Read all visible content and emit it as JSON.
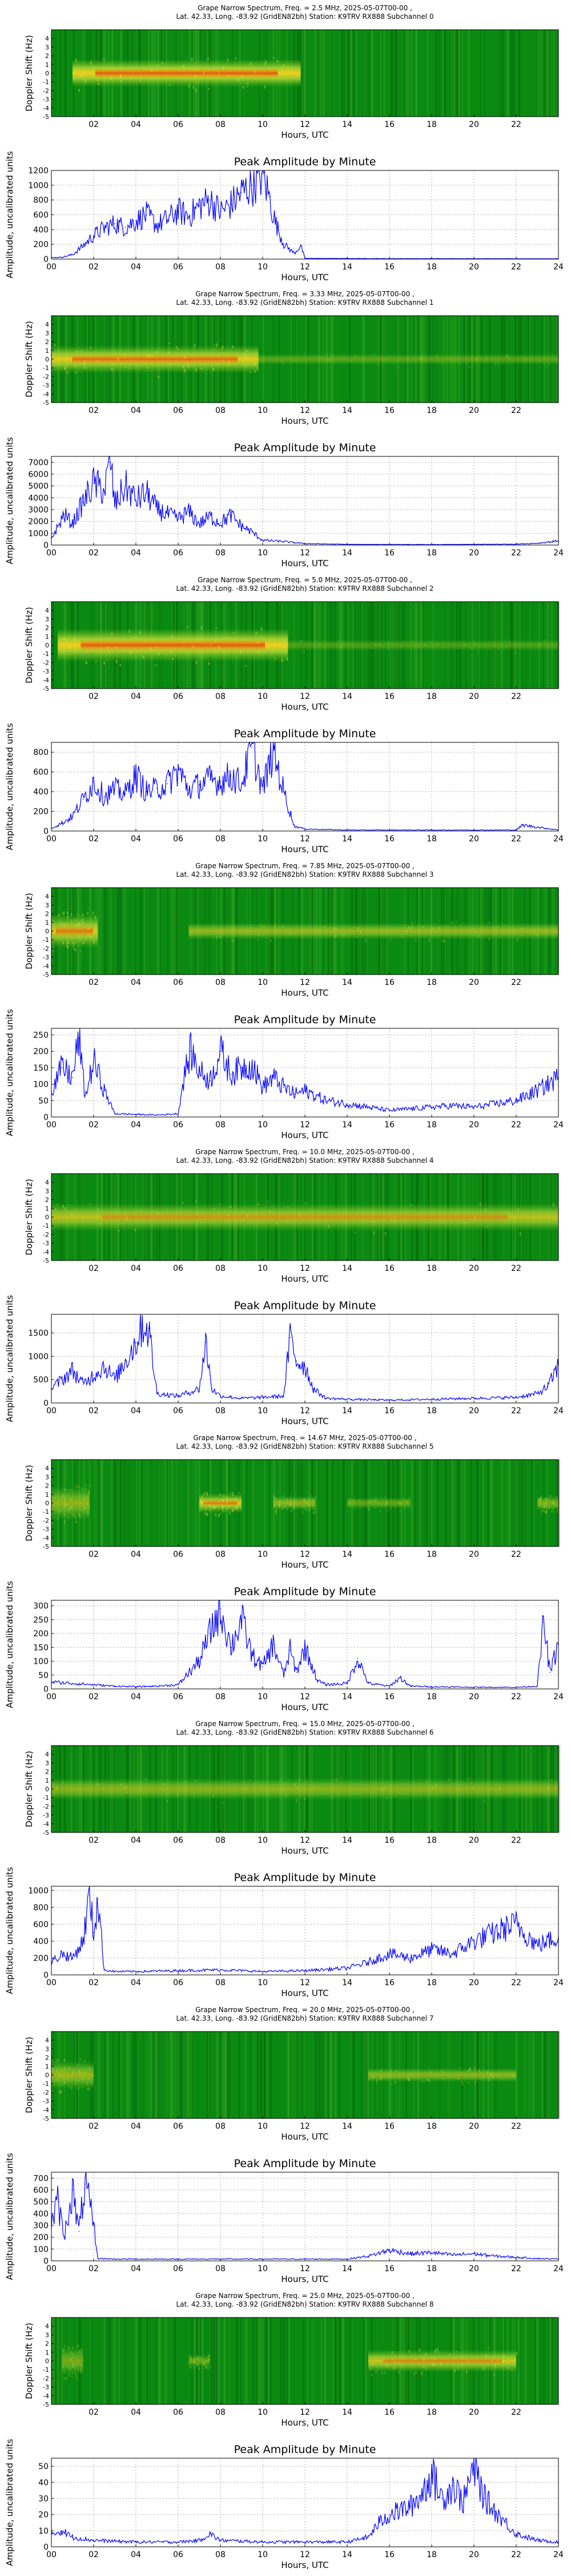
{
  "spectrogram_axes": {
    "ylabel": "Doppler Shift (Hz)",
    "xlabel": "Hours, UTC",
    "xticks": [
      "02",
      "04",
      "06",
      "08",
      "10",
      "12",
      "14",
      "16",
      "18",
      "20",
      "22"
    ],
    "yticks": [
      "-5",
      "-4",
      "-3",
      "-2",
      "-1",
      "0",
      "1",
      "2",
      "3",
      "4"
    ]
  },
  "amplitude_axes": {
    "title": "Peak Amplitude by Minute",
    "ylabel": "Amplitude, uncalibrated units",
    "xlabel": "Hours, UTC",
    "xticks": [
      "00",
      "02",
      "04",
      "06",
      "08",
      "10",
      "12",
      "14",
      "16",
      "18",
      "20",
      "22",
      "24"
    ]
  },
  "colors": {
    "spectrogram_bg": "#0b8a12",
    "trace": "#0000ff",
    "grid": "#b0b0b0"
  },
  "chart_data": [
    {
      "type": "heatmap",
      "title": "Grape Narrow Spectrum, Freq. = 2.5 MHz, 2025-05-07T00-00 , Lat.  42.33, Long. -83.92 (GridEN82bh) Station: K9TRV RX888 Subchannel 0",
      "title_line1": "Grape Narrow Spectrum, Freq. = 2.5 MHz, 2025-05-07T00-00 ,",
      "title_line2": "Lat.  42.33, Long. -83.92 (GridEN82bh) Station: K9TRV RX888 Subchannel 0",
      "xlabel": "Hours, UTC",
      "ylabel": "Doppler Shift (Hz)",
      "xlim": [
        0,
        24
      ],
      "ylim": [
        -5,
        5
      ],
      "signal": [
        {
          "start": 1.0,
          "end": 11.8,
          "level": 0.95,
          "width": 1.0
        }
      ]
    },
    {
      "type": "line",
      "title": "Peak Amplitude by Minute",
      "xlabel": "Hours, UTC",
      "ylabel": "Amplitude, uncalibrated units",
      "xlim": [
        0,
        24
      ],
      "ylim": [
        0,
        1200
      ],
      "yticks": [
        0,
        200,
        400,
        600,
        800,
        1000,
        1200
      ],
      "x": [
        0,
        0.5,
        1,
        1.5,
        2,
        2.5,
        3,
        3.5,
        4,
        4.5,
        5,
        5.5,
        6,
        6.5,
        7,
        7.5,
        8,
        8.5,
        9,
        9.5,
        10,
        10.3,
        10.6,
        11,
        11.5,
        11.8,
        12,
        14,
        16,
        18,
        20,
        22,
        24
      ],
      "y": [
        20,
        25,
        60,
        180,
        320,
        420,
        480,
        430,
        520,
        600,
        460,
        540,
        650,
        580,
        720,
        800,
        640,
        740,
        900,
        1000,
        1150,
        850,
        500,
        200,
        80,
        180,
        10,
        8,
        6,
        6,
        6,
        5,
        5
      ]
    },
    {
      "type": "heatmap",
      "title": "Grape Narrow Spectrum, Freq. = 3.33 MHz, 2025-05-07T00-00 , Lat.  42.33, Long. -83.92 (GridEN82bh) Station: K9TRV RX888 Subchannel 1",
      "title_line1": "Grape Narrow Spectrum, Freq. = 3.33 MHz, 2025-05-07T00-00 ,",
      "title_line2": "Lat.  42.33, Long. -83.92 (GridEN82bh) Station: K9TRV RX888 Subchannel 1",
      "xlabel": "Hours, UTC",
      "ylabel": "Doppler Shift (Hz)",
      "xlim": [
        0,
        24
      ],
      "ylim": [
        -5,
        5
      ],
      "signal": [
        {
          "start": 0.0,
          "end": 9.8,
          "level": 0.9,
          "width": 1.0
        },
        {
          "start": 9.8,
          "end": 24.0,
          "level": 0.35,
          "width": 0.4
        }
      ]
    },
    {
      "type": "line",
      "title": "Peak Amplitude by Minute",
      "xlabel": "Hours, UTC",
      "ylabel": "Amplitude, uncalibrated units",
      "xlim": [
        0,
        24
      ],
      "ylim": [
        0,
        7500
      ],
      "yticks": [
        0,
        1000,
        2000,
        3000,
        4000,
        5000,
        6000,
        7000
      ],
      "x": [
        0,
        0.3,
        0.6,
        1,
        1.5,
        2,
        2.5,
        2.8,
        3,
        3.5,
        4,
        4.5,
        5,
        5.5,
        6,
        6.5,
        7,
        7.5,
        8,
        8.5,
        9,
        9.5,
        10,
        11,
        12,
        14,
        16,
        18,
        20,
        22,
        23,
        24
      ],
      "y": [
        600,
        1500,
        2600,
        1800,
        3600,
        5200,
        4600,
        7000,
        3400,
        5000,
        3800,
        4400,
        3000,
        2600,
        2200,
        2800,
        1800,
        2400,
        1900,
        2500,
        1600,
        1100,
        400,
        300,
        120,
        60,
        50,
        40,
        60,
        80,
        150,
        350
      ]
    },
    {
      "type": "heatmap",
      "title": "Grape Narrow Spectrum, Freq. = 5.0 MHz, 2025-05-07T00-00 , Lat.  42.33, Long. -83.92 (GridEN82bh) Station: K9TRV RX888 Subchannel 2",
      "title_line1": "Grape Narrow Spectrum, Freq. = 5.0 MHz, 2025-05-07T00-00 ,",
      "title_line2": "Lat.  42.33, Long. -83.92 (GridEN82bh) Station: K9TRV RX888 Subchannel 2",
      "xlabel": "Hours, UTC",
      "ylabel": "Doppler Shift (Hz)",
      "xlim": [
        0,
        24
      ],
      "ylim": [
        -5,
        5
      ],
      "signal": [
        {
          "start": 0.3,
          "end": 11.2,
          "level": 0.95,
          "width": 1.2
        },
        {
          "start": 11.2,
          "end": 24.0,
          "level": 0.3,
          "width": 0.4
        }
      ]
    },
    {
      "type": "line",
      "title": "Peak Amplitude by Minute",
      "xlabel": "Hours, UTC",
      "ylabel": "Amplitude, uncalibrated units",
      "xlim": [
        0,
        24
      ],
      "ylim": [
        0,
        900
      ],
      "yticks": [
        0,
        200,
        400,
        600,
        800
      ],
      "x": [
        0,
        0.5,
        1,
        1.5,
        2,
        2.5,
        3,
        3.5,
        4,
        4.5,
        5,
        5.5,
        6,
        6.5,
        7,
        7.5,
        8,
        8.5,
        9,
        9.5,
        10,
        10.5,
        11,
        11.5,
        12,
        14,
        16,
        18,
        20,
        22,
        22.3,
        24
      ],
      "y": [
        30,
        80,
        150,
        320,
        500,
        350,
        420,
        380,
        560,
        400,
        430,
        480,
        620,
        420,
        470,
        520,
        500,
        560,
        480,
        850,
        420,
        820,
        400,
        50,
        20,
        10,
        10,
        10,
        10,
        10,
        60,
        10
      ]
    },
    {
      "type": "heatmap",
      "title": "Grape Narrow Spectrum, Freq. = 7.85 MHz, 2025-05-07T00-00 , Lat.  42.33, Long. -83.92 (GridEN82bh) Station: K9TRV RX888 Subchannel 3",
      "title_line1": "Grape Narrow Spectrum, Freq. = 7.85 MHz, 2025-05-07T00-00 ,",
      "title_line2": "Lat.  42.33, Long. -83.92 (GridEN82bh) Station: K9TRV RX888 Subchannel 3",
      "xlabel": "Hours, UTC",
      "ylabel": "Doppler Shift (Hz)",
      "xlim": [
        0,
        24
      ],
      "ylim": [
        -5,
        5
      ],
      "signal": [
        {
          "start": 0.0,
          "end": 2.2,
          "level": 0.85,
          "width": 1.2
        },
        {
          "start": 6.5,
          "end": 24.0,
          "level": 0.6,
          "width": 0.6
        }
      ]
    },
    {
      "type": "line",
      "title": "Peak Amplitude by Minute",
      "xlabel": "Hours, UTC",
      "ylabel": "Amplitude, uncalibrated units",
      "xlim": [
        0,
        24
      ],
      "ylim": [
        0,
        270
      ],
      "yticks": [
        0,
        50,
        100,
        150,
        200,
        250
      ],
      "x": [
        0,
        0.5,
        1,
        1.3,
        1.6,
        2,
        2.5,
        3,
        4,
        5,
        6,
        6.3,
        6.6,
        7,
        7.5,
        8,
        8.5,
        9,
        9.5,
        10,
        10.5,
        11,
        11.5,
        12,
        13,
        14,
        15,
        16,
        17,
        18,
        19,
        20,
        21,
        22,
        23,
        23.5,
        24
      ],
      "y": [
        80,
        150,
        120,
        240,
        60,
        170,
        80,
        10,
        8,
        6,
        10,
        130,
        200,
        140,
        110,
        200,
        130,
        150,
        160,
        90,
        120,
        90,
        70,
        80,
        50,
        40,
        30,
        20,
        25,
        30,
        35,
        30,
        40,
        50,
        80,
        100,
        120
      ]
    },
    {
      "type": "heatmap",
      "title": "Grape Narrow Spectrum, Freq. = 10.0 MHz, 2025-05-07T00-00 , Lat.  42.33, Long. -83.92 (GridEN82bh) Station: K9TRV RX888 Subchannel 4",
      "title_line1": "Grape Narrow Spectrum, Freq. = 10.0 MHz, 2025-05-07T00-00 ,",
      "title_line2": "Lat.  42.33, Long. -83.92 (GridEN82bh) Station: K9TRV RX888 Subchannel 4",
      "xlabel": "Hours, UTC",
      "ylabel": "Doppler Shift (Hz)",
      "xlim": [
        0,
        24
      ],
      "ylim": [
        -5,
        5
      ],
      "signal": [
        {
          "start": 0.0,
          "end": 24.0,
          "level": 0.75,
          "width": 1.0
        }
      ]
    },
    {
      "type": "line",
      "title": "Peak Amplitude by Minute",
      "xlabel": "Hours, UTC",
      "ylabel": "Amplitude, uncalibrated units",
      "xlim": [
        0,
        24
      ],
      "ylim": [
        0,
        1900
      ],
      "yticks": [
        0,
        500,
        1000,
        1500
      ],
      "x": [
        0,
        0.5,
        1,
        1.5,
        2,
        2.5,
        3,
        3.5,
        4,
        4.3,
        4.6,
        5,
        6,
        7,
        7.3,
        7.6,
        8,
        9,
        10,
        11,
        11.3,
        11.6,
        12,
        12.4,
        13,
        14,
        16,
        18,
        20,
        22,
        23,
        23.5,
        24
      ],
      "y": [
        300,
        500,
        700,
        400,
        600,
        800,
        500,
        900,
        1300,
        1700,
        1600,
        200,
        150,
        300,
        1300,
        300,
        150,
        100,
        120,
        150,
        1400,
        900,
        800,
        300,
        100,
        80,
        60,
        80,
        100,
        120,
        200,
        350,
        800
      ]
    },
    {
      "type": "heatmap",
      "title": "Grape Narrow Spectrum, Freq. = 14.67 MHz, 2025-05-07T00-00 , Lat.  42.33, Long. -83.92 (GridEN82bh) Station: K9TRV RX888 Subchannel 5",
      "title_line1": "Grape Narrow Spectrum, Freq. = 14.67 MHz, 2025-05-07T00-00 ,",
      "title_line2": "Lat.  42.33, Long. -83.92 (GridEN82bh) Station: K9TRV RX888 Subchannel 5",
      "xlabel": "Hours, UTC",
      "ylabel": "Doppler Shift (Hz)",
      "xlim": [
        0,
        24
      ],
      "ylim": [
        -5,
        5
      ],
      "signal": [
        {
          "start": 0.0,
          "end": 1.8,
          "level": 0.55,
          "width": 1.2
        },
        {
          "start": 7.0,
          "end": 9.0,
          "level": 0.85,
          "width": 0.7
        },
        {
          "start": 10.5,
          "end": 12.5,
          "level": 0.55,
          "width": 0.5
        },
        {
          "start": 14.0,
          "end": 17.0,
          "level": 0.4,
          "width": 0.4
        },
        {
          "start": 23.0,
          "end": 24.0,
          "level": 0.5,
          "width": 0.5
        }
      ]
    },
    {
      "type": "line",
      "title": "Peak Amplitude by Minute",
      "xlabel": "Hours, UTC",
      "ylabel": "Amplitude, uncalibrated units",
      "xlim": [
        0,
        24
      ],
      "ylim": [
        0,
        320
      ],
      "yticks": [
        0,
        50,
        100,
        150,
        200,
        250,
        300
      ],
      "x": [
        0,
        1,
        2,
        3,
        4,
        5,
        6,
        7,
        7.5,
        8,
        8.5,
        9,
        9.5,
        10,
        10.5,
        11,
        11.3,
        11.6,
        12,
        12.3,
        12.6,
        13,
        14,
        14.5,
        15,
        16,
        16.5,
        17,
        18,
        20,
        22,
        23,
        23.3,
        23.6,
        24
      ],
      "y": [
        25,
        20,
        15,
        10,
        8,
        10,
        15,
        100,
        200,
        290,
        150,
        250,
        120,
        80,
        160,
        50,
        140,
        60,
        150,
        90,
        30,
        15,
        20,
        110,
        20,
        10,
        40,
        10,
        8,
        6,
        6,
        10,
        240,
        60,
        160
      ]
    },
    {
      "type": "heatmap",
      "title": "Grape Narrow Spectrum, Freq. = 15.0 MHz, 2025-05-07T00-00 , Lat.  42.33, Long. -83.92 (GridEN82bh) Station: K9TRV RX888 Subchannel 6",
      "title_line1": "Grape Narrow Spectrum, Freq. = 15.0 MHz, 2025-05-07T00-00 ,",
      "title_line2": "Lat.  42.33, Long. -83.92 (GridEN82bh) Station: K9TRV RX888 Subchannel 6",
      "xlabel": "Hours, UTC",
      "ylabel": "Doppler Shift (Hz)",
      "xlim": [
        0,
        24
      ],
      "ylim": [
        -5,
        5
      ],
      "signal": [
        {
          "start": 0.0,
          "end": 24.0,
          "level": 0.55,
          "width": 0.8
        }
      ]
    },
    {
      "type": "line",
      "title": "Peak Amplitude by Minute",
      "xlabel": "Hours, UTC",
      "ylabel": "Amplitude, uncalibrated units",
      "xlim": [
        0,
        24
      ],
      "ylim": [
        0,
        1050
      ],
      "yticks": [
        0,
        200,
        400,
        600,
        800,
        1000
      ],
      "x": [
        0,
        0.5,
        1,
        1.5,
        1.8,
        2,
        2.2,
        2.5,
        3,
        4,
        6,
        8,
        10,
        12,
        14,
        15,
        16,
        17,
        18,
        19,
        20,
        21,
        22,
        23,
        24
      ],
      "y": [
        150,
        250,
        200,
        400,
        950,
        500,
        900,
        60,
        40,
        40,
        50,
        60,
        40,
        50,
        80,
        150,
        250,
        200,
        300,
        250,
        400,
        500,
        600,
        350,
        450
      ]
    },
    {
      "type": "heatmap",
      "title": "Grape Narrow Spectrum, Freq. = 20.0 MHz, 2025-05-07T00-00 , Lat.  42.33, Long. -83.92 (GridEN82bh) Station: K9TRV RX888 Subchannel 7",
      "title_line1": "Grape Narrow Spectrum, Freq. = 20.0 MHz, 2025-05-07T00-00 ,",
      "title_line2": "Lat.  42.33, Long. -83.92 (GridEN82bh) Station: K9TRV RX888 Subchannel 7",
      "xlabel": "Hours, UTC",
      "ylabel": "Doppler Shift (Hz)",
      "xlim": [
        0,
        24
      ],
      "ylim": [
        -5,
        5
      ],
      "signal": [
        {
          "start": 0.0,
          "end": 2.0,
          "level": 0.6,
          "width": 1.0
        },
        {
          "start": 15.0,
          "end": 22.0,
          "level": 0.55,
          "width": 0.5
        }
      ]
    },
    {
      "type": "line",
      "title": "Peak Amplitude by Minute",
      "xlabel": "Hours, UTC",
      "ylabel": "Amplitude, uncalibrated units",
      "xlim": [
        0,
        24
      ],
      "ylim": [
        0,
        750
      ],
      "yticks": [
        0,
        100,
        200,
        300,
        400,
        500,
        600,
        700
      ],
      "x": [
        0,
        0.3,
        0.6,
        1,
        1.3,
        1.6,
        2,
        2.2,
        3,
        6,
        9,
        12,
        14,
        15,
        16,
        17,
        18,
        19,
        20,
        21,
        22,
        23,
        24
      ],
      "y": [
        300,
        500,
        200,
        600,
        250,
        650,
        300,
        20,
        15,
        15,
        15,
        15,
        15,
        40,
        90,
        60,
        70,
        50,
        60,
        40,
        30,
        20,
        15
      ]
    },
    {
      "type": "heatmap",
      "title": "Grape Narrow Spectrum, Freq. = 25.0 MHz, 2025-05-07T00-00 , Lat.  42.33, Long. -83.92 (GridEN82bh) Station: K9TRV RX888 Subchannel 8",
      "title_line1": "Grape Narrow Spectrum, Freq. = 25.0 MHz, 2025-05-07T00-00 ,",
      "title_line2": "Lat.  42.33, Long. -83.92 (GridEN82bh) Station: K9TRV RX888 Subchannel 8",
      "xlabel": "Hours, UTC",
      "ylabel": "Doppler Shift (Hz)",
      "xlim": [
        0,
        24
      ],
      "ylim": [
        -5,
        5
      ],
      "signal": [
        {
          "start": 0.5,
          "end": 1.5,
          "level": 0.45,
          "width": 1.0
        },
        {
          "start": 6.5,
          "end": 7.5,
          "level": 0.4,
          "width": 0.4
        },
        {
          "start": 15.0,
          "end": 22.0,
          "level": 0.8,
          "width": 0.8
        }
      ]
    },
    {
      "type": "line",
      "title": "Peak Amplitude by Minute",
      "xlabel": "Hours, UTC",
      "ylabel": "Amplitude, uncalibrated units",
      "xlim": [
        0,
        24
      ],
      "ylim": [
        0,
        55
      ],
      "yticks": [
        0,
        10,
        20,
        30,
        40,
        50
      ],
      "x": [
        0,
        0.5,
        1,
        2,
        4,
        6,
        7,
        7.5,
        8,
        10,
        12,
        14,
        15,
        15.5,
        16,
        17,
        17.5,
        18,
        18.5,
        19,
        19.5,
        20,
        20.5,
        21,
        21.5,
        22,
        23,
        24
      ],
      "y": [
        8,
        10,
        6,
        4,
        3,
        3,
        4,
        8,
        4,
        3,
        3,
        3,
        6,
        15,
        20,
        25,
        32,
        45,
        30,
        38,
        28,
        50,
        30,
        22,
        15,
        8,
        4,
        3
      ]
    }
  ]
}
